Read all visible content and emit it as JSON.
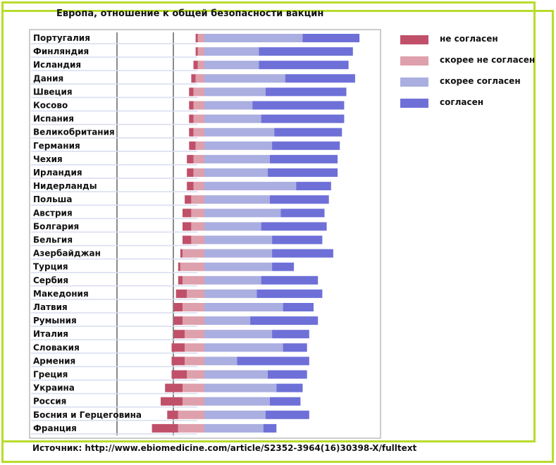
{
  "chart_data": {
    "type": "bar",
    "stacked": true,
    "diverging": true,
    "title": "Европа, отношение к общей безопасности вакцин",
    "categories": [
      "Португалия",
      "Финляндия",
      "Исландия",
      "Дания",
      "Швеция",
      "Косово",
      "Испания",
      "Великобритания",
      "Германия",
      "Чехия",
      "Ирландия",
      "Нидерланды",
      "Польша",
      "Австрия",
      "Болгария",
      "Бельгия",
      "Азербайджан",
      "Турция",
      "Сербия",
      "Македония",
      "Латвия",
      "Румыния",
      "Италия",
      "Словакия",
      "Армения",
      "Греция",
      "Украина",
      "Россия",
      "Босния и Герцеговина",
      "Франция"
    ],
    "series": [
      {
        "name": "не согласен",
        "color": "#c0506a",
        "values": [
          1,
          1,
          2,
          2,
          2,
          2,
          2,
          2,
          3,
          3,
          3,
          3,
          3,
          4,
          4,
          4,
          1,
          1,
          2,
          5,
          4,
          4,
          5,
          6,
          6,
          7,
          8,
          10,
          5,
          12
        ]
      },
      {
        "name": "скорее не согласен",
        "color": "#dea0ac",
        "values": [
          3,
          3,
          3,
          4,
          5,
          5,
          5,
          5,
          4,
          5,
          5,
          5,
          6,
          6,
          6,
          6,
          10,
          11,
          10,
          8,
          10,
          10,
          9,
          9,
          9,
          8,
          10,
          10,
          12,
          12
        ]
      },
      {
        "name": "скорее согласен",
        "color": "#aaaee0",
        "values": [
          45,
          25,
          25,
          37,
          28,
          22,
          26,
          32,
          31,
          30,
          29,
          42,
          30,
          35,
          26,
          31,
          31,
          31,
          26,
          24,
          36,
          21,
          31,
          36,
          15,
          29,
          33,
          30,
          28,
          27
        ]
      },
      {
        "name": "согласен",
        "color": "#6e70d8",
        "values": [
          26,
          43,
          41,
          32,
          37,
          42,
          38,
          31,
          31,
          31,
          32,
          16,
          27,
          20,
          30,
          23,
          28,
          10,
          26,
          30,
          14,
          31,
          17,
          11,
          33,
          18,
          12,
          14,
          20,
          6
        ]
      }
    ],
    "legend": "right"
  },
  "legend_items": [
    {
      "label": "не согласен"
    },
    {
      "label": "скорее не согласен"
    },
    {
      "label": " скорее согласен"
    },
    {
      "label": "согласен"
    }
  ],
  "source": "Источник: http://www.ebiomedicine.com/article/S2352-3964(16)30398-X/fulltext"
}
